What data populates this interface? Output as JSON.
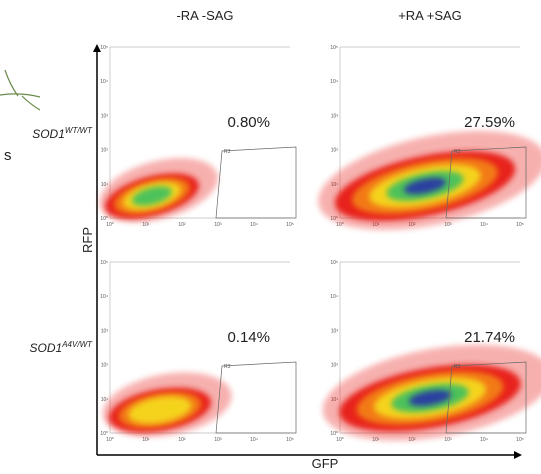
{
  "fragment_text": "s",
  "columns": [
    "-RA -SAG",
    "+RA +SAG"
  ],
  "rows": [
    {
      "label": "SOD1",
      "superscript": "WT/WT",
      "values": [
        "0.80%",
        "27.59%"
      ]
    },
    {
      "label": "SOD1",
      "superscript": "A4V/WT",
      "values": [
        "0.14%",
        "21.74%"
      ]
    }
  ],
  "y_axis_label": "RFP",
  "x_axis_label": "GFP",
  "gate_label": "R3",
  "ticks": [
    "10⁰",
    "10¹",
    "10²",
    "10³",
    "10⁴",
    "10⁵"
  ]
}
